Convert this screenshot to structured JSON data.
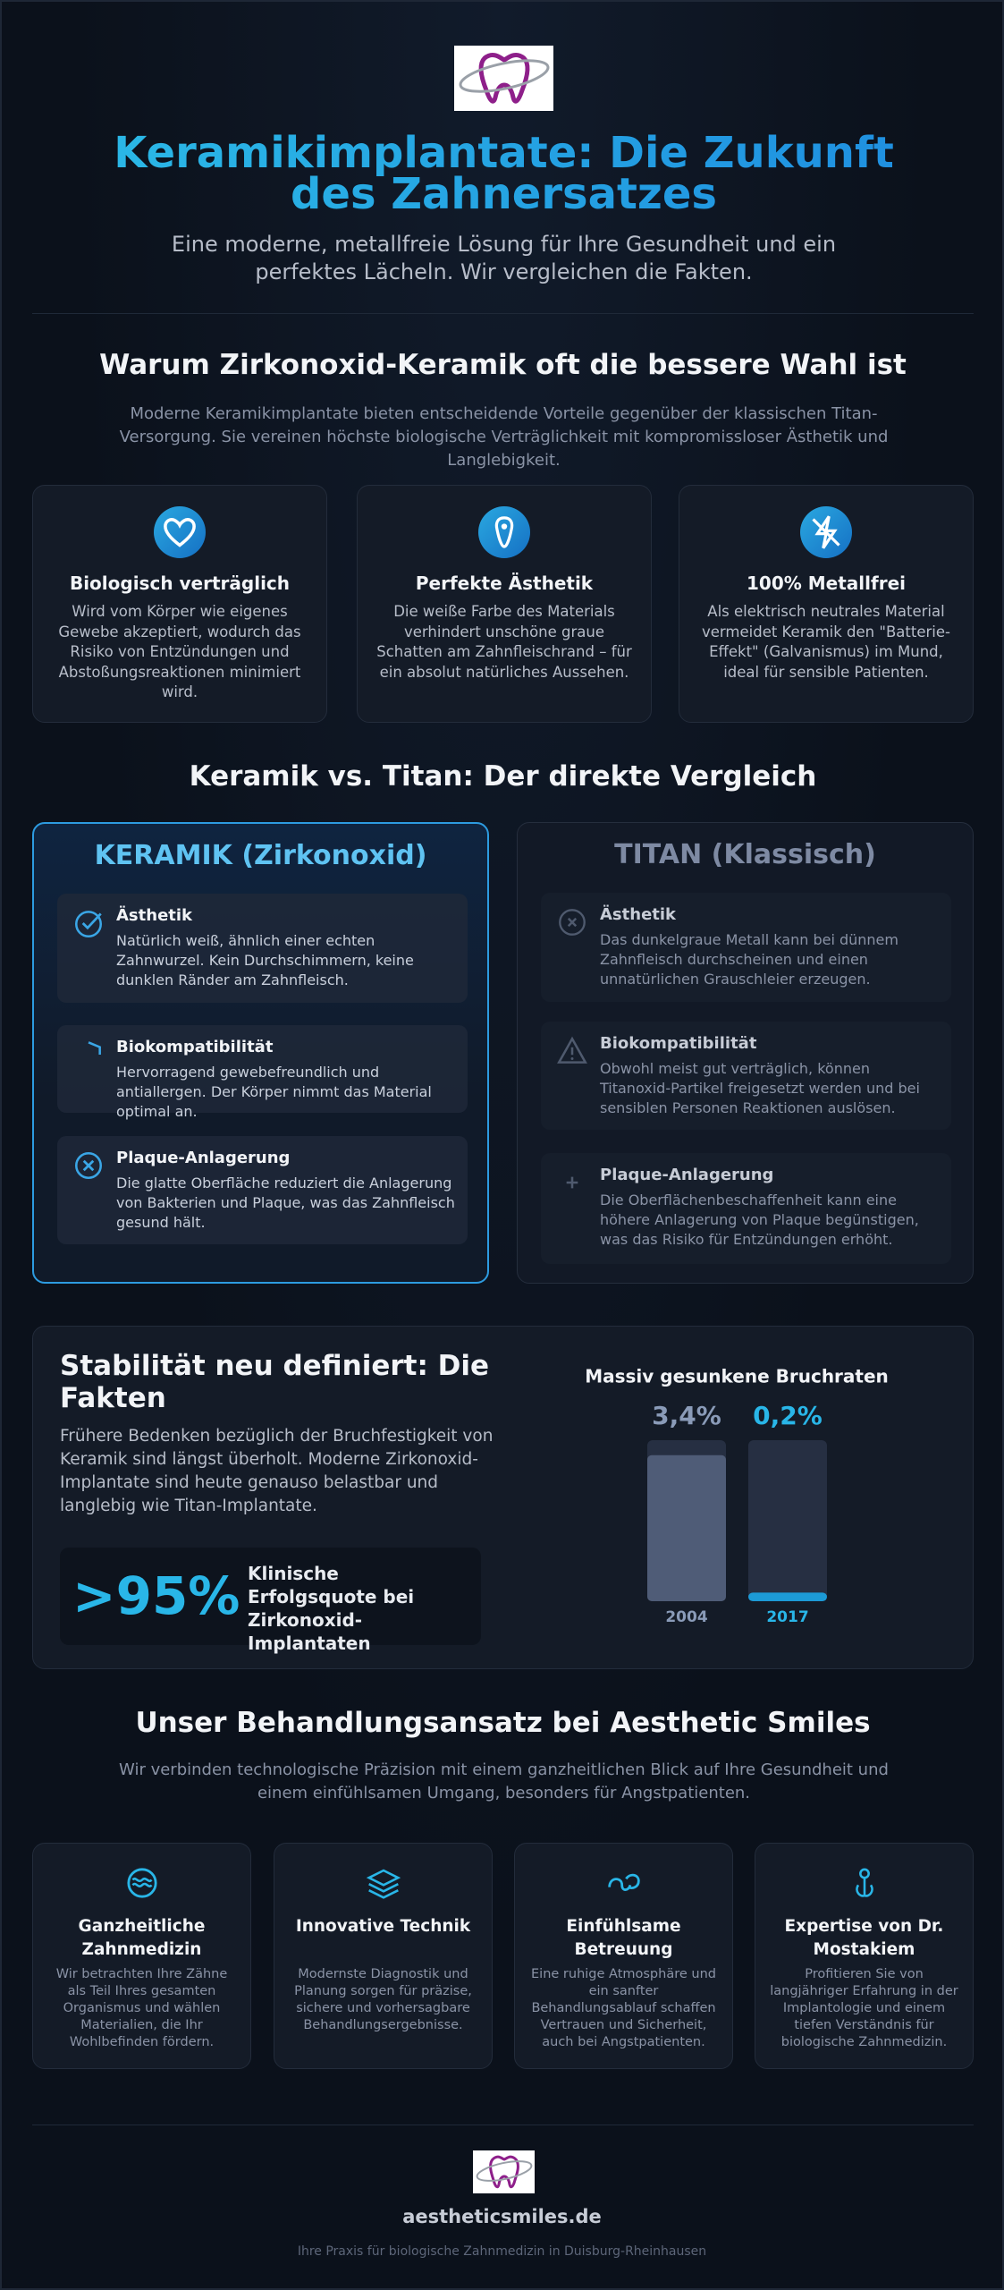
{
  "header": {
    "title": "Keramikimplantate: Die Zukunft des Zahnersatzes",
    "subtitle": "Eine moderne, metallfreie Lösung für Ihre Gesundheit und ein perfektes Lächeln. Wir vergleichen die Fakten."
  },
  "benefits": {
    "title": "Warum Zirkonoxid-Keramik oft die bessere Wahl ist",
    "intro": "Moderne Keramikimplantate bieten entscheidende Vorteile gegenüber der klassischen Titan-Versorgung. Sie vereinen höchste biologische Verträglichkeit mit kompromissloser Ästhetik und Langlebigkeit.",
    "cards": [
      {
        "title": "Biologisch verträglich",
        "text": "Wird vom Körper wie eigenes Gewebe akzeptiert, wodurch das Risiko von Entzündungen und Abstoßungsreaktionen minimiert wird."
      },
      {
        "title": "Perfekte Ästhetik",
        "text": "Die weiße Farbe des Materials verhindert unschöne graue Schatten am Zahnfleischrand – für ein absolut natürliches Aussehen."
      },
      {
        "title": "100% Metallfrei",
        "text": "Als elektrisch neutrales Material vermeidet Keramik den \"Batterie-Effekt\" (Galvanismus) im Mund, ideal für sensible Patienten."
      }
    ]
  },
  "comparison": {
    "title": "Keramik vs. Titan: Der direkte Vergleich",
    "columns": [
      {
        "title": "KERAMIK (Zirkonoxid)",
        "items": [
          {
            "title": "Ästhetik",
            "text": "Natürlich weiß, ähnlich einer echten Zahnwurzel. Kein Durchschimmern, keine dunklen Ränder am Zahnfleisch."
          },
          {
            "title": "Biokompatibilität",
            "text": "Hervorragend gewebefreundlich und antiallergen. Der Körper nimmt das Material optimal an."
          },
          {
            "title": "Plaque-Anlagerung",
            "text": "Die glatte Oberfläche reduziert die Anlagerung von Bakterien und Plaque, was das Zahnfleisch gesund hält."
          }
        ]
      },
      {
        "title": "TITAN (Klassisch)",
        "items": [
          {
            "title": "Ästhetik",
            "text": "Das dunkelgraue Metall kann bei dünnem Zahnfleisch durchscheinen und einen unnatürlichen Grauschleier erzeugen."
          },
          {
            "title": "Biokompatibilität",
            "text": "Obwohl meist gut verträglich, können Titanoxid-Partikel freigesetzt werden und bei sensiblen Personen Reaktionen auslösen."
          },
          {
            "title": "Plaque-Anlagerung",
            "text": "Die Oberflächenbeschaffenheit kann eine höhere Anlagerung von Plaque begünstigen, was das Risiko für Entzündungen erhöht."
          }
        ]
      }
    ]
  },
  "stability": {
    "title": "Stabilität neu definiert: Die Fakten",
    "text": "Frühere Bedenken bezüglich der Bruchfestigkeit von Keramik sind längst überholt. Moderne Zirkonoxid-Implantate sind heute genauso belastbar und langlebig wie Titan-Implantate.",
    "stat": {
      "value": ">95%",
      "label": "Klinische Erfolgsquote bei Zirkonoxid-Implantaten"
    }
  },
  "chart_data": {
    "type": "bar",
    "title": "Massiv gesunkene Bruchraten",
    "categories": [
      "2004",
      "2017"
    ],
    "values": [
      3.4,
      0.2
    ],
    "value_labels": [
      "3,4%",
      "0,2%"
    ],
    "colors": [
      "#4f5c77",
      "#1c9ad6"
    ],
    "ylim": [
      0,
      3.75
    ]
  },
  "approach": {
    "title": "Unser Behandlungsansatz bei Aesthetic Smiles",
    "intro": "Wir verbinden technologische Präzision mit einem ganzheitlichen Blick auf Ihre Gesundheit und einem einfühlsamen Umgang, besonders für Angstpatienten.",
    "cards": [
      {
        "title": "Ganzheitliche Zahnmedizin",
        "text": "Wir betrachten Ihre Zähne als Teil Ihres gesamten Organismus und wählen Materialien, die Ihr Wohlbefinden fördern."
      },
      {
        "title": "Innovative Technik",
        "text": "Modernste Diagnostik und Planung sorgen für präzise, sichere und vorhersagbare Behandlungsergebnisse."
      },
      {
        "title": "Einfühlsame Betreuung",
        "text": "Eine ruhige Atmosphäre und ein sanfter Behandlungsablauf schaffen Vertrauen und Sicherheit, auch bei Angstpatienten."
      },
      {
        "title": "Expertise von Dr. Mostakiem",
        "text": "Profitieren Sie von langjähriger Erfahrung in der Implantologie und einem tiefen Verständnis für biologische Zahnmedizin."
      }
    ]
  },
  "footer": {
    "site": "aestheticsmiles.de",
    "tagline": "Ihre Praxis für biologische Zahnmedizin in Duisburg-Rheinhausen"
  }
}
